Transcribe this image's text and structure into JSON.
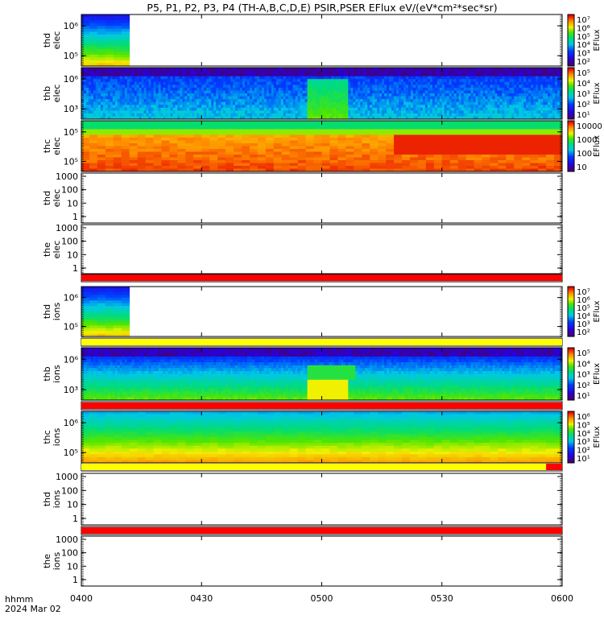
{
  "title": "P5, P1, P2, P3, P4 (TH-A,B,C,D,E) PSIR,PSER EFlux eV/(eV*cm²*sec*sr)",
  "chart_data": {
    "type": "heatmap",
    "x_axis": {
      "ticks": [
        "0400",
        "0430",
        "0500",
        "0530",
        "0600"
      ],
      "range_minutes": [
        0,
        120
      ],
      "label_line1": "hhmm",
      "label_line2": "2024 Mar 02"
    },
    "colorbar_label": "EFlux",
    "panels": [
      {
        "id": "tha-elec",
        "label": [
          "thd",
          "elec"
        ],
        "type": "spectrogram",
        "y_ticks": [
          "10⁶",
          "10⁵"
        ],
        "data_end_min": 11,
        "pattern": "burst",
        "colorbar": [
          "10⁷",
          "10⁶",
          "10⁵",
          "10⁴",
          "10³",
          "10²"
        ]
      },
      {
        "id": "thb-elec",
        "label": [
          "thb",
          "elec"
        ],
        "type": "spectrogram",
        "y_ticks": [
          "10⁶",
          "10³"
        ],
        "pattern": "noisy",
        "event_window_min": [
          56,
          66
        ],
        "colorbar": [
          "10⁵",
          "10⁴",
          "10³",
          "10²",
          "10¹"
        ]
      },
      {
        "id": "thc-elec",
        "label": [
          "thc",
          "elec"
        ],
        "type": "spectrogram",
        "y_ticks": [
          "10⁵",
          "10⁵"
        ],
        "pattern": "warm",
        "colorbar": [
          "10000",
          "1000",
          "100",
          "10"
        ]
      },
      {
        "id": "thd-elec",
        "label": [
          "thd",
          "elec"
        ],
        "type": "empty",
        "y_ticks": [
          "1000",
          "100",
          "10",
          "1"
        ]
      },
      {
        "id": "the-elec",
        "label": [
          "the",
          "elec"
        ],
        "type": "empty",
        "y_ticks": [
          "1000",
          "100",
          "10",
          "1"
        ]
      },
      {
        "id": "tha-ions",
        "label": [
          "thd",
          "ions"
        ],
        "type": "spectrogram",
        "y_ticks": [
          "10⁶",
          "10⁵"
        ],
        "data_end_min": 11,
        "pattern": "burst",
        "colorbar": [
          "10⁷",
          "10⁶",
          "10⁵",
          "10⁴",
          "10³",
          "10²"
        ]
      },
      {
        "id": "thb-ions",
        "label": [
          "thb",
          "ions"
        ],
        "type": "spectrogram",
        "y_ticks": [
          "10⁶",
          "10³"
        ],
        "pattern": "ions",
        "event_window_min": [
          56,
          66
        ],
        "colorbar": [
          "10⁵",
          "10⁴",
          "10³",
          "10²",
          "10¹"
        ]
      },
      {
        "id": "thc-ions",
        "label": [
          "thc",
          "ions"
        ],
        "type": "spectrogram",
        "y_ticks": [
          "10⁶",
          "10⁵"
        ],
        "pattern": "smooth",
        "colorbar": [
          "10⁶",
          "10⁵",
          "10⁴",
          "10³",
          "10²",
          "10¹"
        ]
      },
      {
        "id": "thd-ions",
        "label": [
          "thd",
          "ions"
        ],
        "type": "empty",
        "y_ticks": [
          "1000",
          "100",
          "10",
          "1"
        ]
      },
      {
        "id": "the-ions",
        "label": [
          "the",
          "ions"
        ],
        "type": "empty",
        "y_ticks": [
          "1000",
          "100",
          "10",
          "1"
        ]
      }
    ],
    "mode_bars": [
      {
        "after_panel": "the-elec",
        "segments": [
          {
            "from_min": 0,
            "to_min": 120,
            "color": "#ff0000"
          }
        ]
      },
      {
        "after_panel": "tha-ions",
        "segments": [
          {
            "from_min": 0,
            "to_min": 120,
            "color": "#ffff00"
          }
        ]
      },
      {
        "after_panel": "thb-ions",
        "segments": [
          {
            "from_min": 0,
            "to_min": 120,
            "color": "#ff0000"
          }
        ]
      },
      {
        "after_panel": "thc-ions",
        "segments": [
          {
            "from_min": 0,
            "to_min": 116,
            "color": "#ffff00"
          },
          {
            "from_min": 116,
            "to_min": 120,
            "color": "#ff0000"
          }
        ]
      },
      {
        "after_panel": "thd-ions",
        "segments": [
          {
            "from_min": 0,
            "to_min": 120,
            "color": "#ff0000"
          }
        ]
      }
    ]
  }
}
